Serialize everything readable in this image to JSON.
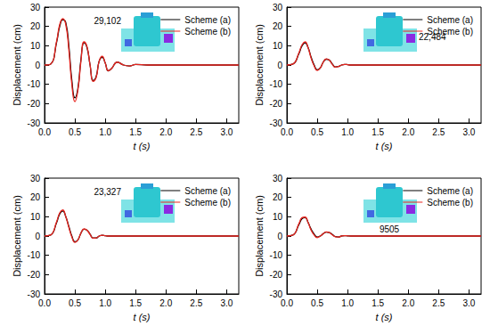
{
  "chart_data": [
    {
      "type": "line",
      "x_label": "t (s)",
      "y_label": "Displacement (cm)",
      "annotation": "29,102",
      "x": [
        0,
        0.1,
        0.2,
        0.25,
        0.3,
        0.35,
        0.4,
        0.45,
        0.5,
        0.55,
        0.6,
        0.65,
        0.7,
        0.75,
        0.8,
        0.85,
        0.9,
        0.95,
        1.0,
        1.05,
        1.1,
        1.2,
        1.3,
        1.4,
        1.5,
        1.7,
        2.0,
        2.5,
        3.0,
        3.2
      ],
      "series": [
        {
          "name": "Scheme (a)",
          "color": "#000000",
          "values": [
            0,
            0.5,
            12,
            20,
            23.5,
            22,
            10,
            -8,
            -17,
            -12,
            3,
            11.5,
            9,
            0,
            -8,
            -6,
            2,
            4,
            1,
            -3,
            -2,
            1.5,
            0,
            -0.5,
            0.3,
            0,
            0,
            0,
            0,
            0
          ]
        },
        {
          "name": "Scheme (b)",
          "color": "#e8251f",
          "values": [
            0,
            0.5,
            12.5,
            21,
            24,
            21,
            8,
            -10,
            -19,
            -13,
            2,
            12,
            9.5,
            0,
            -8.5,
            -6.5,
            2,
            4.5,
            1,
            -3,
            -2,
            1.5,
            0,
            -0.5,
            0.3,
            0,
            0,
            0,
            0,
            0
          ]
        }
      ],
      "xlim": [
        0,
        3.2
      ],
      "xticks": [
        {
          "value": 0,
          "label": "0.0"
        },
        0.5,
        {
          "value": 1,
          "label": "1.0"
        },
        1.5,
        {
          "value": 2,
          "label": "2.0"
        },
        2.5,
        {
          "value": 3,
          "label": "3.0"
        }
      ],
      "ylim": [
        -30,
        30
      ],
      "yticks": [
        -30,
        -20,
        -10,
        0,
        10,
        20,
        30
      ],
      "grid": false,
      "legend": "upper right"
    },
    {
      "type": "line",
      "x_label": "t (s)",
      "y_label": "Displacement (cm)",
      "annotation": "22,484",
      "x": [
        0,
        0.1,
        0.2,
        0.25,
        0.3,
        0.35,
        0.4,
        0.45,
        0.5,
        0.55,
        0.6,
        0.65,
        0.7,
        0.75,
        0.8,
        0.85,
        0.9,
        0.95,
        1.0,
        1.05,
        1.1,
        1.2,
        1.3,
        1.4,
        1.5,
        1.7,
        2.0,
        2.5,
        3.0,
        3.2
      ],
      "series": [
        {
          "name": "Scheme (a)",
          "color": "#000000",
          "values": [
            0,
            0.5,
            6,
            10,
            11.5,
            9,
            4,
            0,
            -2.5,
            -1.5,
            1.5,
            3,
            2.5,
            0.5,
            -1,
            -0.8,
            0,
            0.3,
            0.2,
            0,
            0,
            0,
            0,
            0,
            0,
            0,
            0,
            0,
            0,
            0
          ]
        },
        {
          "name": "Scheme (b)",
          "color": "#e8251f",
          "values": [
            0,
            0.5,
            6.5,
            10.5,
            12,
            9,
            3.5,
            -0.5,
            -2.8,
            -1.5,
            1.5,
            3.2,
            2.5,
            0.3,
            -1.1,
            -0.8,
            0,
            0.3,
            0.2,
            0,
            0,
            0,
            0,
            0,
            0,
            0,
            0,
            0,
            0,
            0
          ]
        }
      ],
      "xlim": [
        0,
        3.2
      ],
      "xticks": [
        {
          "value": 0,
          "label": "0.0"
        },
        0.5,
        {
          "value": 1,
          "label": "1.0"
        },
        1.5,
        {
          "value": 2,
          "label": "2.0"
        },
        2.5,
        {
          "value": 3,
          "label": "3.0"
        }
      ],
      "ylim": [
        -30,
        30
      ],
      "yticks": [
        -30,
        -20,
        -10,
        0,
        10,
        20,
        30
      ],
      "grid": false,
      "legend": "upper right"
    },
    {
      "type": "line",
      "x_label": "t (s)",
      "y_label": "Displacement (cm)",
      "annotation": "23,327",
      "x": [
        0,
        0.1,
        0.2,
        0.25,
        0.3,
        0.35,
        0.4,
        0.45,
        0.5,
        0.55,
        0.6,
        0.65,
        0.7,
        0.75,
        0.8,
        0.85,
        0.9,
        0.95,
        1.0,
        1.05,
        1.1,
        1.2,
        1.3,
        1.4,
        1.5,
        1.7,
        2.0,
        2.5,
        3.0,
        3.2
      ],
      "series": [
        {
          "name": "Scheme (a)",
          "color": "#000000",
          "values": [
            0,
            0.5,
            7,
            11.5,
            13,
            10,
            5,
            0,
            -3,
            -2,
            1.5,
            3.5,
            3,
            1,
            -1,
            -1,
            0,
            0.4,
            0.2,
            0,
            0,
            0,
            0,
            0,
            0,
            0,
            0,
            0,
            0,
            0
          ]
        },
        {
          "name": "Scheme (b)",
          "color": "#e8251f",
          "values": [
            0,
            0.5,
            7.5,
            12,
            13.5,
            10,
            4.5,
            -0.5,
            -3.3,
            -2,
            1.5,
            3.7,
            3,
            0.8,
            -1.1,
            -1,
            0,
            0.4,
            0.2,
            0,
            0,
            0,
            0,
            0,
            0,
            0,
            0,
            0,
            0,
            0
          ]
        }
      ],
      "xlim": [
        0,
        3.2
      ],
      "xticks": [
        {
          "value": 0,
          "label": "0.0"
        },
        0.5,
        {
          "value": 1,
          "label": "1.0"
        },
        1.5,
        {
          "value": 2,
          "label": "2.0"
        },
        2.5,
        {
          "value": 3,
          "label": "3.0"
        }
      ],
      "ylim": [
        -30,
        30
      ],
      "yticks": [
        -30,
        -20,
        -10,
        0,
        10,
        20,
        30
      ],
      "grid": false,
      "legend": "upper right"
    },
    {
      "type": "line",
      "x_label": "t (s)",
      "y_label": "Displacement (cm)",
      "annotation": "9505",
      "x": [
        0,
        0.1,
        0.2,
        0.25,
        0.3,
        0.35,
        0.4,
        0.45,
        0.5,
        0.55,
        0.6,
        0.65,
        0.7,
        0.75,
        0.8,
        0.85,
        0.9,
        0.95,
        1.0,
        1.05,
        1.1,
        1.2,
        1.3,
        1.4,
        1.5,
        1.7,
        2.0,
        2.5,
        3.0,
        3.2
      ],
      "series": [
        {
          "name": "Scheme (a)",
          "color": "#000000",
          "values": [
            0,
            0.5,
            6,
            9,
            9.5,
            7,
            3.5,
            1,
            -0.5,
            0,
            1.2,
            2,
            1.8,
            0.8,
            -0.3,
            -0.5,
            0,
            0.2,
            0.1,
            0,
            0,
            0,
            0,
            0,
            0,
            0,
            0,
            0,
            0,
            0
          ]
        },
        {
          "name": "Scheme (b)",
          "color": "#e8251f",
          "values": [
            0,
            0.5,
            6.5,
            9.5,
            9.8,
            7,
            3,
            0.5,
            -0.8,
            0,
            1.2,
            2.1,
            1.8,
            0.6,
            -0.4,
            -0.5,
            0,
            0.2,
            0.1,
            0,
            0,
            0,
            0,
            0,
            0,
            0,
            0,
            0,
            0,
            0
          ]
        }
      ],
      "xlim": [
        0,
        3.2
      ],
      "xticks": [
        {
          "value": 0,
          "label": "0.0"
        },
        0.5,
        {
          "value": 1,
          "label": "1.0"
        },
        1.5,
        {
          "value": 2,
          "label": "2.0"
        },
        2.5,
        {
          "value": 3,
          "label": "3.0"
        }
      ],
      "ylim": [
        -30,
        30
      ],
      "yticks": [
        -30,
        -20,
        -10,
        0,
        10,
        20,
        30
      ],
      "grid": false,
      "legend": "upper right"
    }
  ]
}
